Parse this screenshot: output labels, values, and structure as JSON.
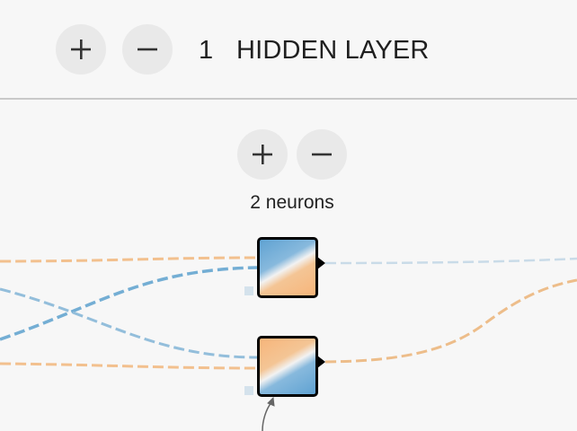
{
  "header": {
    "add_layer_icon": "plus-icon",
    "remove_layer_icon": "minus-icon",
    "layer_count": "1",
    "layer_label": "HIDDEN LAYER"
  },
  "layer": {
    "add_neuron_icon": "plus-icon",
    "remove_neuron_icon": "minus-icon",
    "neuron_count_label": "2 neurons"
  },
  "colors": {
    "positive_weight": "#f2c08e",
    "negative_weight": "#74aed4",
    "weak_weight": "#c9dbe8",
    "button_bg": "#e9e9e9"
  }
}
